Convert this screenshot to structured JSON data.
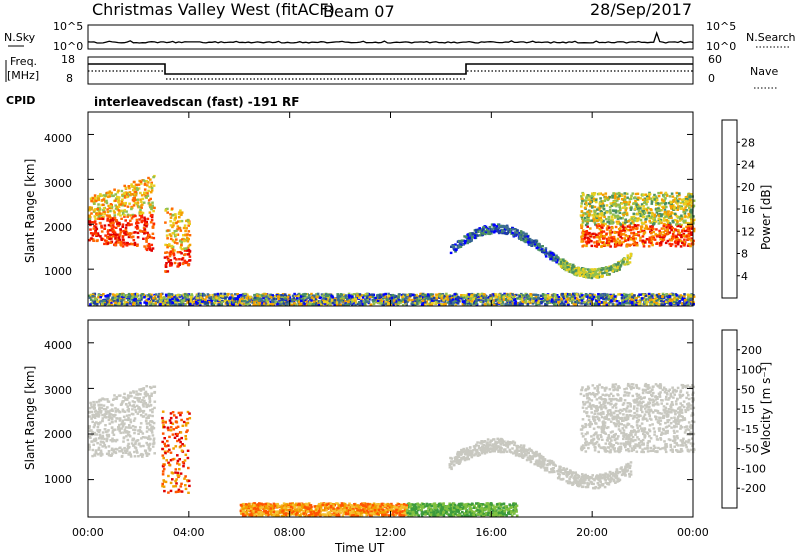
{
  "header": {
    "site": "Christmas Valley West (fitACF)",
    "beam": "Beam 07",
    "date": "28/Sep/2017"
  },
  "noise_panel": {
    "left_label": "N.Sky",
    "right_label": "N.Search",
    "left_ticks": [
      "10^5",
      "10^0"
    ],
    "right_ticks": [
      "10^5",
      "10^0"
    ]
  },
  "freq_panel": {
    "left_label_1": "Freq.",
    "left_label_2": "[MHz]",
    "right_label": "Nave",
    "left_ticks": [
      "18",
      "8"
    ],
    "right_ticks": [
      "60",
      "0"
    ]
  },
  "cpid": {
    "label": "CPID",
    "value": "interleavedscan (fast) -191 RF"
  },
  "colors": {
    "power_scale": [
      "#0000ff",
      "#1e3fa0",
      "#3d6f91",
      "#4a8f60",
      "#8fbf50",
      "#e8d020",
      "#f5a000",
      "#ff6a00",
      "#ff2a00",
      "#e00000"
    ],
    "velocity_scale": [
      "#e00000",
      "#ff5500",
      "#f0a000",
      "#f5c030",
      "#c8c8c0",
      "#c8c8c0",
      "#80c040",
      "#3c9b3c",
      "#2a58b0",
      "#0000d0"
    ]
  },
  "chart_data": [
    {
      "type": "heatmap",
      "name": "power",
      "ylabel": "Slant Range [km]",
      "xlabel": "",
      "xlim": [
        "00:00",
        "24:00"
      ],
      "ylim": [
        180,
        4500
      ],
      "y_ticks": [
        "1000",
        "2000",
        "3000",
        "4000"
      ],
      "colorbar_label": "Power [dB]",
      "colorbar_ticks": [
        "4",
        "8",
        "12",
        "16",
        "20",
        "24",
        "28"
      ],
      "colorbar_range": [
        0,
        32
      ],
      "regions": [
        {
          "time": [
            "00:00",
            "02:30"
          ],
          "range_km": [
            1200,
            3100
          ],
          "level": "20-30 dB"
        },
        {
          "time": [
            "03:00",
            "04:00"
          ],
          "range_km": [
            600,
            2600
          ],
          "level": "16-28 dB"
        },
        {
          "time": [
            "14:30",
            "21:30"
          ],
          "range_km": [
            1100,
            2700
          ],
          "level": "4-16 dB"
        },
        {
          "time": [
            "19:30",
            "24:00"
          ],
          "range_km": [
            1400,
            3200
          ],
          "level": "16-30 dB"
        },
        {
          "time": [
            "00:00",
            "24:00"
          ],
          "range_km": [
            180,
            450
          ],
          "level": "4-20 dB"
        }
      ]
    },
    {
      "type": "heatmap",
      "name": "velocity",
      "ylabel": "Slant Range [km]",
      "xlabel": "Time UT",
      "x_ticks": [
        "00:00",
        "04:00",
        "08:00",
        "12:00",
        "16:00",
        "20:00",
        "00:00"
      ],
      "y_ticks": [
        "1000",
        "2000",
        "3000",
        "4000"
      ],
      "colorbar_label": "Velocity [m s⁻¹]",
      "colorbar_ticks": [
        "200",
        "100",
        "50",
        "15",
        "-15",
        "-50",
        "-100",
        "-200"
      ],
      "regions": [
        {
          "time": [
            "00:00",
            "02:30"
          ],
          "range_km": [
            1500,
            3100
          ],
          "velocity": "-15 to 15 (ground scatter)"
        },
        {
          "time": [
            "03:00",
            "04:00"
          ],
          "range_km": [
            700,
            2600
          ],
          "velocity": "-200 to -50"
        },
        {
          "time": [
            "14:30",
            "21:30"
          ],
          "range_km": [
            1100,
            2600
          ],
          "velocity": "-15 to 15"
        },
        {
          "time": [
            "19:30",
            "24:00"
          ],
          "range_km": [
            1500,
            3200
          ],
          "velocity": "-15 to 15"
        },
        {
          "time": [
            "06:00",
            "17:00"
          ],
          "range_km": [
            180,
            500
          ],
          "velocity": "-50 to 50"
        }
      ]
    }
  ]
}
